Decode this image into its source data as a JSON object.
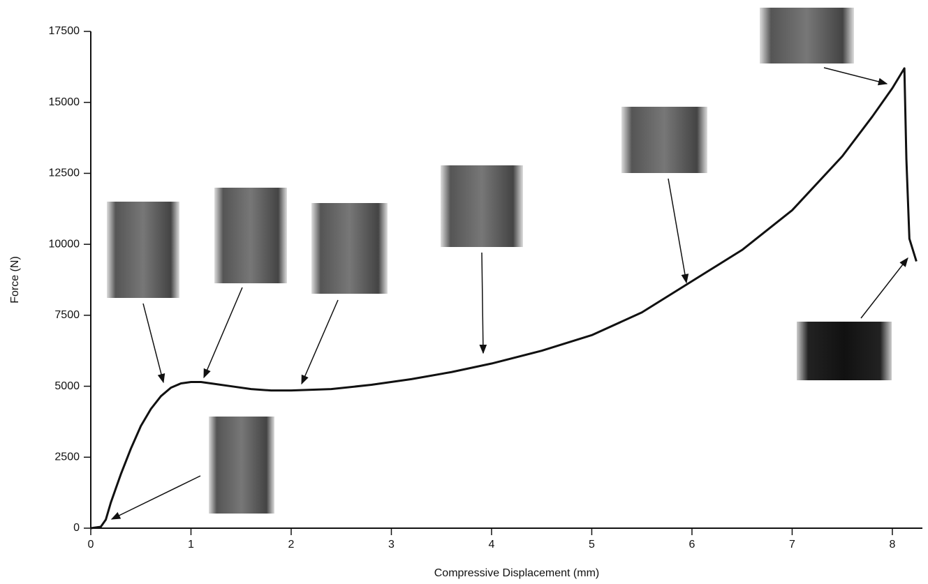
{
  "chart_data": {
    "type": "line",
    "xlabel": "Compressive Displacement (mm)",
    "ylabel": "Force (N)",
    "x": [
      0,
      0.1,
      0.15,
      0.2,
      0.25,
      0.3,
      0.4,
      0.5,
      0.6,
      0.7,
      0.8,
      0.9,
      1.0,
      1.1,
      1.2,
      1.4,
      1.6,
      1.8,
      2.0,
      2.4,
      2.8,
      3.2,
      3.6,
      4.0,
      4.5,
      5.0,
      5.5,
      6.0,
      6.5,
      7.0,
      7.5,
      7.8,
      8.0,
      8.12,
      8.14,
      8.17,
      8.24
    ],
    "series": [
      {
        "color": "#111111",
        "values": [
          0,
          50,
          300,
          900,
          1400,
          1900,
          2800,
          3600,
          4200,
          4650,
          4950,
          5100,
          5150,
          5150,
          5100,
          5000,
          4900,
          4850,
          4850,
          4900,
          5050,
          5250,
          5500,
          5800,
          6250,
          6800,
          7600,
          8700,
          9800,
          11200,
          13100,
          14500,
          15500,
          16200,
          13000,
          10200,
          9400
        ]
      }
    ],
    "xlim": [
      0,
      8.3
    ],
    "xticks": [
      0,
      1,
      2,
      3,
      4,
      5,
      6,
      7,
      8
    ],
    "ylim": [
      0,
      17500
    ],
    "yticks": [
      0,
      2500,
      5000,
      7500,
      10000,
      12500,
      15000,
      17500
    ]
  }
}
